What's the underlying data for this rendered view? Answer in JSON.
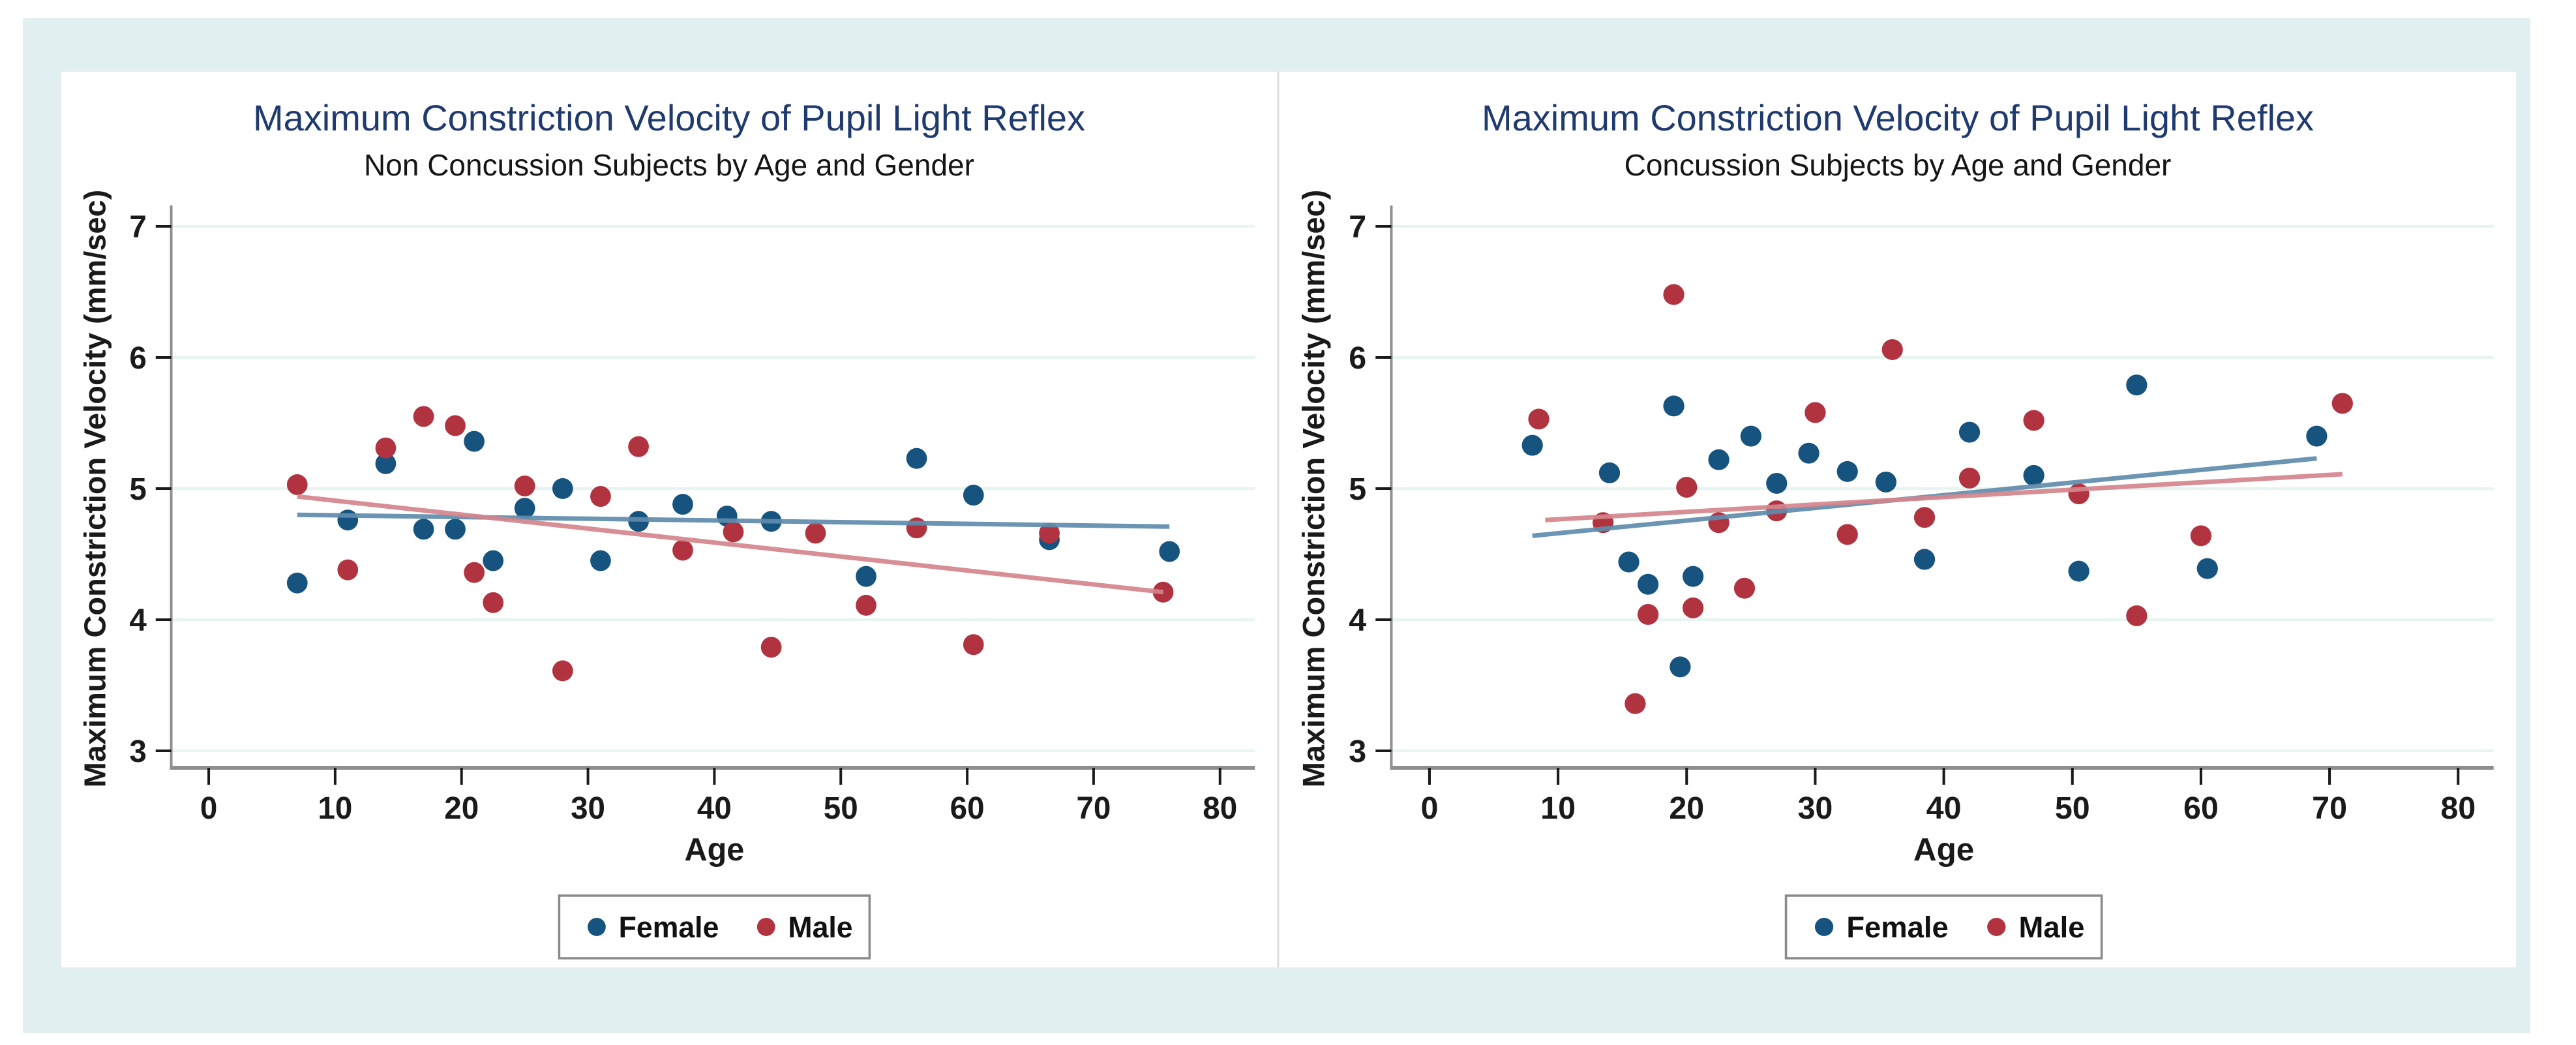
{
  "page": {
    "background": "#ffffff",
    "frame_color": "#e2eff1",
    "card_color": "#ffffff",
    "seam_color": "#e3e3e3"
  },
  "colors": {
    "title": "#1e3a6e",
    "female_dot": "#16537e",
    "male_dot": "#b23340",
    "female_trend": "#5e8cac",
    "male_trend": "#d4848c",
    "grid": "#e6f4f2",
    "axis": "#8f8f8f",
    "tick": "#1a1a1a",
    "legend_border": "#8a8a8a"
  },
  "legend": {
    "female_label": "Female",
    "male_label": "Male"
  },
  "chart_data": [
    {
      "type": "scatter",
      "title": "Maximum Constriction Velocity of Pupil Light Reflex",
      "subtitle": "Non Concussion Subjects by Age and Gender",
      "xlabel": "Age",
      "ylabel": "Maximum Constriction Velocity (mm/sec)",
      "xlim": [
        0,
        80
      ],
      "ylim": [
        3,
        7
      ],
      "xticks": [
        0,
        10,
        20,
        30,
        40,
        50,
        60,
        70,
        80
      ],
      "yticks": [
        3,
        4,
        5,
        6,
        7
      ],
      "grid": "horizontal",
      "legend_position": "bottom-center",
      "series": [
        {
          "name": "Female",
          "color_key": "female",
          "points": [
            [
              7,
              4.28
            ],
            [
              11,
              4.76
            ],
            [
              14,
              5.19
            ],
            [
              17,
              4.69
            ],
            [
              19.5,
              4.69
            ],
            [
              21,
              5.36
            ],
            [
              22.5,
              4.45
            ],
            [
              25,
              4.85
            ],
            [
              28,
              5.0
            ],
            [
              31,
              4.45
            ],
            [
              34,
              4.75
            ],
            [
              37.5,
              4.88
            ],
            [
              41,
              4.79
            ],
            [
              44.5,
              4.75
            ],
            [
              52,
              4.33
            ],
            [
              56,
              5.23
            ],
            [
              60.5,
              4.95
            ],
            [
              66.5,
              4.61
            ],
            [
              76,
              4.52
            ]
          ],
          "trend": [
            [
              7,
              4.8
            ],
            [
              76,
              4.71
            ]
          ]
        },
        {
          "name": "Male",
          "color_key": "male",
          "points": [
            [
              7,
              5.03
            ],
            [
              11,
              4.38
            ],
            [
              14,
              5.31
            ],
            [
              17,
              5.55
            ],
            [
              19.5,
              5.48
            ],
            [
              21,
              4.36
            ],
            [
              22.5,
              4.13
            ],
            [
              25,
              5.02
            ],
            [
              28,
              3.61
            ],
            [
              31,
              4.94
            ],
            [
              34,
              5.32
            ],
            [
              37.5,
              4.53
            ],
            [
              41.5,
              4.67
            ],
            [
              44.5,
              3.79
            ],
            [
              48,
              4.66
            ],
            [
              52,
              4.11
            ],
            [
              56,
              4.7
            ],
            [
              60.5,
              3.81
            ],
            [
              66.5,
              4.66
            ],
            [
              75.5,
              4.21
            ]
          ],
          "trend": [
            [
              7,
              4.94
            ],
            [
              75.5,
              4.21
            ]
          ]
        }
      ]
    },
    {
      "type": "scatter",
      "title": "Maximum Constriction Velocity of Pupil Light Reflex",
      "subtitle": "Concussion Subjects by Age and Gender",
      "xlabel": "Age",
      "ylabel": "Maximum Constriction Velocity (mm/sec)",
      "xlim": [
        0,
        80
      ],
      "ylim": [
        3,
        7
      ],
      "xticks": [
        0,
        10,
        20,
        30,
        40,
        50,
        60,
        70,
        80
      ],
      "yticks": [
        3,
        4,
        5,
        6,
        7
      ],
      "grid": "horizontal",
      "legend_position": "bottom-center",
      "series": [
        {
          "name": "Female",
          "color_key": "female",
          "points": [
            [
              8,
              5.33
            ],
            [
              14,
              5.12
            ],
            [
              15.5,
              4.44
            ],
            [
              17,
              4.27
            ],
            [
              19,
              5.63
            ],
            [
              19.5,
              3.64
            ],
            [
              20.5,
              4.33
            ],
            [
              22.5,
              5.22
            ],
            [
              25,
              5.4
            ],
            [
              27,
              5.04
            ],
            [
              29.5,
              5.27
            ],
            [
              32.5,
              5.13
            ],
            [
              35.5,
              5.05
            ],
            [
              38.5,
              4.46
            ],
            [
              42,
              5.43
            ],
            [
              47,
              5.1
            ],
            [
              50.5,
              4.37
            ],
            [
              55,
              5.79
            ],
            [
              60.5,
              4.39
            ],
            [
              69,
              5.4
            ]
          ],
          "trend": [
            [
              8,
              4.64
            ],
            [
              69,
              5.23
            ]
          ]
        },
        {
          "name": "Male",
          "color_key": "male",
          "points": [
            [
              8.5,
              5.53
            ],
            [
              13.5,
              4.74
            ],
            [
              16,
              3.36
            ],
            [
              17,
              4.04
            ],
            [
              19,
              6.48
            ],
            [
              20,
              5.01
            ],
            [
              20.5,
              4.09
            ],
            [
              22.5,
              4.74
            ],
            [
              24.5,
              4.24
            ],
            [
              27,
              4.83
            ],
            [
              30,
              5.58
            ],
            [
              32.5,
              4.65
            ],
            [
              36,
              6.06
            ],
            [
              38.5,
              4.78
            ],
            [
              42,
              5.08
            ],
            [
              47,
              5.52
            ],
            [
              50.5,
              4.96
            ],
            [
              55,
              4.03
            ],
            [
              60,
              4.64
            ],
            [
              71,
              5.65
            ]
          ],
          "trend": [
            [
              9,
              4.76
            ],
            [
              71,
              5.11
            ]
          ]
        }
      ]
    }
  ]
}
